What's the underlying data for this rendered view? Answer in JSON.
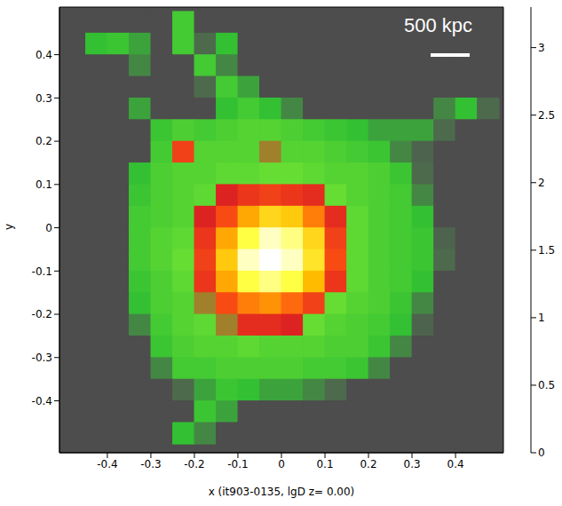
{
  "chart_data": {
    "type": "heatmap",
    "x_label": "x (it903-0135, lgD  z= 0.00)",
    "y_label": "y",
    "annotation": "500 kpc",
    "xlim": [
      -0.51,
      0.51
    ],
    "ylim": [
      -0.52,
      0.51
    ],
    "xticks": [
      -0.4,
      -0.3,
      -0.2,
      -0.1,
      0,
      0.1,
      0.2,
      0.3,
      0.4
    ],
    "yticks": [
      -0.4,
      -0.3,
      -0.2,
      -0.1,
      0,
      0.1,
      0.2,
      0.3,
      0.4
    ],
    "heatmap": {
      "x": [
        -0.475,
        -0.425,
        -0.375,
        -0.325,
        -0.275,
        -0.225,
        -0.175,
        -0.125,
        -0.075,
        -0.025,
        0.025,
        0.075,
        0.125,
        0.175,
        0.225,
        0.275,
        0.325,
        0.375,
        0.425,
        0.475
      ],
      "y": [
        0.475,
        0.425,
        0.375,
        0.325,
        0.275,
        0.225,
        0.175,
        0.125,
        0.075,
        0.025,
        -0.025,
        -0.075,
        -0.125,
        -0.175,
        -0.225,
        -0.275,
        -0.325,
        -0.375,
        -0.425,
        -0.475
      ],
      "cells": [
        [
          0,
          0,
          0,
          0,
          0,
          0.9,
          0,
          0,
          0,
          0,
          0,
          0,
          0,
          0,
          0,
          0,
          0,
          0,
          0,
          0
        ],
        [
          0,
          0.7,
          0.8,
          0.6,
          0,
          0.9,
          0.4,
          0.7,
          0,
          0,
          0,
          0,
          0,
          0,
          0,
          0,
          0,
          0,
          0,
          0
        ],
        [
          0,
          0,
          0,
          0.5,
          0,
          0,
          0.9,
          0.5,
          0,
          0,
          0,
          0,
          0,
          0,
          0,
          0,
          0,
          0,
          0,
          0
        ],
        [
          0,
          0,
          0,
          0,
          0,
          0,
          0.4,
          0.9,
          0.6,
          0,
          0,
          0,
          0,
          0,
          0,
          0,
          0,
          0,
          0,
          0
        ],
        [
          0,
          0,
          0,
          0.6,
          0,
          0,
          0,
          0.7,
          0.9,
          0.7,
          0.5,
          0,
          0,
          0,
          0,
          0,
          0,
          0.5,
          0.7,
          0.4
        ],
        [
          0,
          0,
          0,
          0,
          0.8,
          1.0,
          0.9,
          1.0,
          1.1,
          1.1,
          1.0,
          0.9,
          0.8,
          0.7,
          0.6,
          0.6,
          0.6,
          0.4,
          0,
          0
        ],
        [
          0,
          0,
          0,
          0,
          0.9,
          1.8,
          1.1,
          1.1,
          1.1,
          1.4,
          1.1,
          1.1,
          1.0,
          0.9,
          0.8,
          0.5,
          0.3,
          0,
          0,
          0
        ],
        [
          0,
          0,
          0,
          0.7,
          1.0,
          1.1,
          1.1,
          1.2,
          1.2,
          1.3,
          1.3,
          1.2,
          1.1,
          1.1,
          1.0,
          0.8,
          0.4,
          0,
          0,
          0
        ],
        [
          0,
          0,
          0,
          0.8,
          1.0,
          1.1,
          1.2,
          1.5,
          1.7,
          1.8,
          1.7,
          1.6,
          1.3,
          1.1,
          1.0,
          0.9,
          0.5,
          0,
          0,
          0
        ],
        [
          0,
          0,
          0,
          0.9,
          1.0,
          1.1,
          1.5,
          1.9,
          2.4,
          2.7,
          2.6,
          2.2,
          1.6,
          1.2,
          1.0,
          0.9,
          0.7,
          0,
          0,
          0
        ],
        [
          0,
          0,
          0,
          0.9,
          1.1,
          1.2,
          1.7,
          2.4,
          3.0,
          3.2,
          3.1,
          2.7,
          1.8,
          1.2,
          1.0,
          0.9,
          0.8,
          0.3,
          0,
          0
        ],
        [
          0,
          0,
          0,
          0.9,
          1.1,
          1.3,
          1.8,
          2.6,
          3.2,
          3.3,
          3.2,
          2.8,
          1.9,
          1.2,
          1.0,
          0.9,
          0.8,
          0.4,
          0,
          0
        ],
        [
          0,
          0,
          0,
          0.8,
          1.0,
          1.2,
          1.7,
          2.4,
          3.0,
          3.1,
          3.0,
          2.5,
          1.7,
          1.2,
          1.0,
          0.9,
          0.7,
          0,
          0,
          0
        ],
        [
          0,
          0,
          0,
          0.7,
          1.0,
          1.1,
          1.4,
          1.9,
          2.2,
          2.3,
          2.1,
          1.8,
          1.3,
          1.1,
          1.0,
          0.8,
          0.5,
          0,
          0,
          0
        ],
        [
          0,
          0,
          0,
          0.5,
          0.9,
          1.1,
          1.2,
          1.4,
          1.6,
          1.6,
          1.5,
          1.3,
          1.1,
          1.0,
          0.9,
          0.7,
          0.3,
          0,
          0,
          0
        ],
        [
          0,
          0,
          0,
          0,
          0.8,
          1.0,
          1.1,
          1.1,
          1.2,
          1.1,
          1.1,
          1.1,
          1.0,
          1.0,
          0.8,
          0.5,
          0,
          0,
          0,
          0
        ],
        [
          0,
          0,
          0,
          0,
          0.5,
          0.9,
          0.9,
          1.0,
          1.0,
          1.0,
          1.0,
          0.9,
          0.9,
          0.8,
          0.5,
          0,
          0,
          0,
          0,
          0
        ],
        [
          0,
          0,
          0,
          0,
          0,
          0.4,
          0.6,
          0.8,
          0.7,
          0.6,
          0.6,
          0.5,
          0.4,
          0,
          0,
          0,
          0,
          0,
          0,
          0
        ],
        [
          0,
          0,
          0,
          0,
          0,
          0,
          0.8,
          0.6,
          0,
          0,
          0,
          0,
          0,
          0,
          0,
          0,
          0,
          0,
          0,
          0
        ],
        [
          0,
          0,
          0,
          0,
          0,
          0.7,
          0.5,
          0,
          0,
          0,
          0,
          0,
          0,
          0,
          0,
          0,
          0,
          0,
          0,
          0
        ]
      ]
    },
    "colorbar": {
      "lim": [
        0,
        3.3
      ],
      "ticks": [
        0,
        0.5,
        1,
        1.5,
        2,
        2.5,
        3
      ]
    }
  }
}
